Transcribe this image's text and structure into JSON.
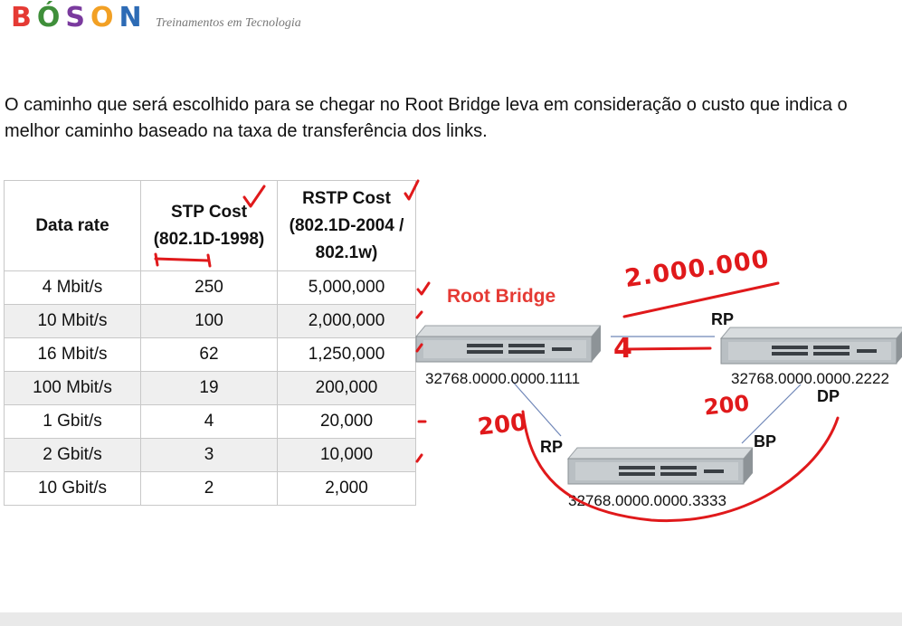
{
  "brand": {
    "letters": [
      {
        "char": "B",
        "color": "#e53a34"
      },
      {
        "char": "Ó",
        "color": "#3f8f3a"
      },
      {
        "char": "S",
        "color": "#7a3a9e"
      },
      {
        "char": "O",
        "color": "#f2a024"
      },
      {
        "char": "N",
        "color": "#2d6bb5"
      }
    ],
    "tagline": "Treinamentos em Tecnologia"
  },
  "intro_text": "O caminho que será escolhido para se chegar no Root Bridge leva em consideração o custo que indica o melhor caminho baseado na taxa de transferência dos links.",
  "table": {
    "headers": {
      "data_rate": "Data rate",
      "stp_line1": "STP Cost",
      "stp_line2": "(802.1D-1998)",
      "rstp_line1": "RSTP Cost",
      "rstp_line2": "(802.1D-2004 /",
      "rstp_line3": "802.1w)"
    },
    "rows": [
      {
        "rate": "4 Mbit/s",
        "stp": "250",
        "rstp": "5,000,000"
      },
      {
        "rate": "10 Mbit/s",
        "stp": "100",
        "rstp": "2,000,000"
      },
      {
        "rate": "16 Mbit/s",
        "stp": "62",
        "rstp": "1,250,000"
      },
      {
        "rate": "100 Mbit/s",
        "stp": "19",
        "rstp": "200,000"
      },
      {
        "rate": "1 Gbit/s",
        "stp": "4",
        "rstp": "20,000"
      },
      {
        "rate": "2 Gbit/s",
        "stp": "3",
        "rstp": "10,000"
      },
      {
        "rate": "10 Gbit/s",
        "stp": "2",
        "rstp": "2,000"
      }
    ]
  },
  "diagram": {
    "root_bridge_label": "Root Bridge",
    "switch1_id": "32768.0000.0000.1111",
    "switch2_id": "32768.0000.0000.2222",
    "switch3_id": "32768.0000.0000.3333",
    "port_rp_top": "RP",
    "port_dp": "DP",
    "port_rp_left": "RP",
    "port_bp": "BP",
    "annotation_cost_old": "2.000.000",
    "annotation_cost_new": "4",
    "annotation_200_left": "200",
    "annotation_200_right": "200"
  },
  "colors": {
    "ink_red": "#e0191b",
    "table_border": "#c8c8c8",
    "row_shade": "#efefef"
  }
}
